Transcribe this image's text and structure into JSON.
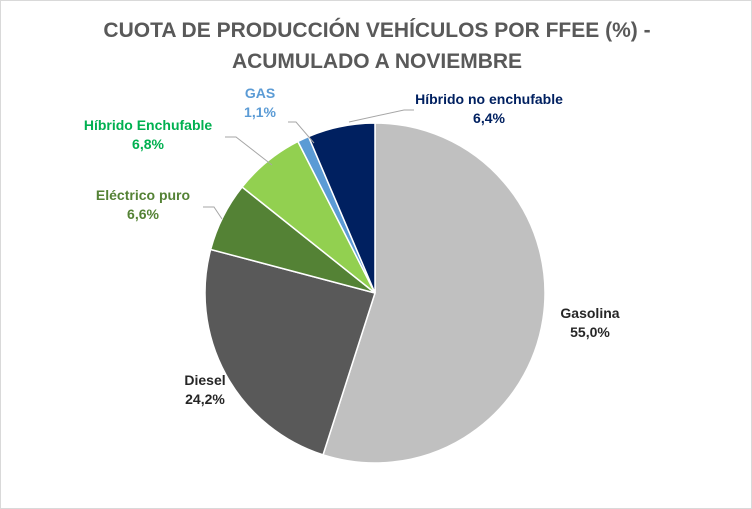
{
  "chart_data": {
    "type": "pie",
    "title_line1": "CUOTA DE PRODUCCIÓN VEHÍCULOS POR FFEE (%) -",
    "title_line2": "ACUMULADO A NOVIEMBRE",
    "slices": [
      {
        "label": "Gasolina",
        "value": 55.0,
        "value_label": "55,0%",
        "color": "#c0c0c0",
        "label_color": "#262626"
      },
      {
        "label": "Diesel",
        "value": 24.2,
        "value_label": "24,2%",
        "color": "#595959",
        "label_color": "#262626"
      },
      {
        "label": "Eléctrico puro",
        "value": 6.6,
        "value_label": "6,6%",
        "color": "#548235",
        "label_color": "#548235"
      },
      {
        "label": "Híbrido Enchufable",
        "value": 6.8,
        "value_label": "6,8%",
        "color": "#92d050",
        "label_color": "#00b050"
      },
      {
        "label": "GAS",
        "value": 1.1,
        "value_label": "1,1%",
        "color": "#5b9bd5",
        "label_color": "#5b9bd5"
      },
      {
        "label": "Híbrido no enchufable",
        "value": 6.4,
        "value_label": "6,4%",
        "color": "#002060",
        "label_color": "#002060"
      }
    ],
    "start_angle": "12 o'clock",
    "direction": "clockwise",
    "legend": "none",
    "data_labels": "outside with leader lines"
  }
}
